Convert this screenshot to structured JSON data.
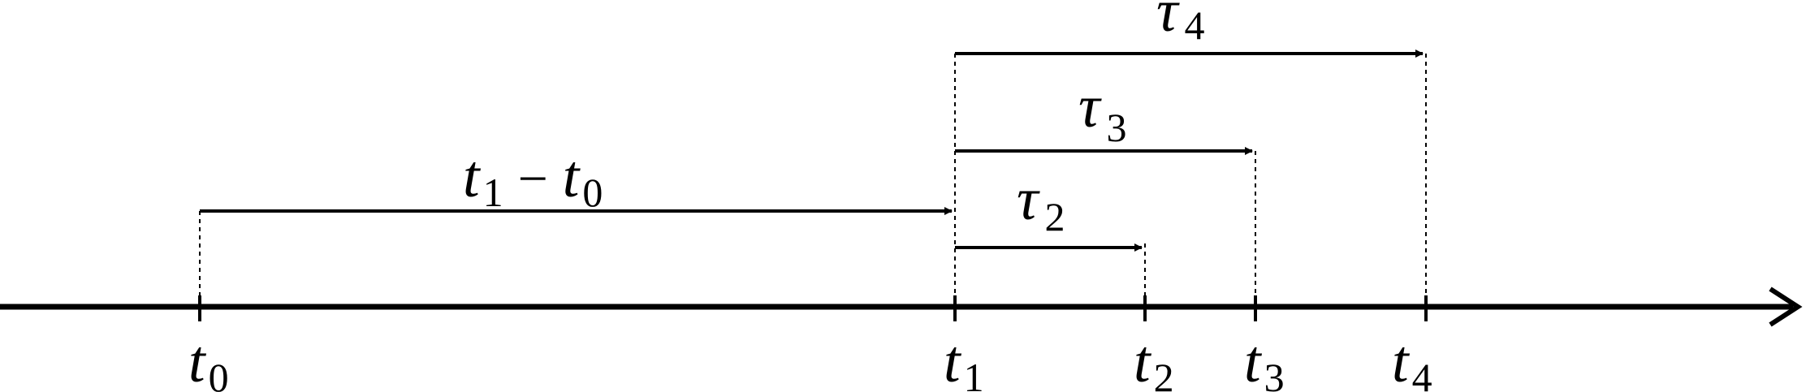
{
  "colors": {
    "ink": "#000000",
    "background": "#ffffff"
  },
  "axis": {
    "direction": "rightward arrow",
    "ticks": [
      {
        "id": "t0",
        "symbol": "t",
        "subscript": "0"
      },
      {
        "id": "t1",
        "symbol": "t",
        "subscript": "1"
      },
      {
        "id": "t2",
        "symbol": "t",
        "subscript": "2"
      },
      {
        "id": "t3",
        "symbol": "t",
        "subscript": "3"
      },
      {
        "id": "t4",
        "symbol": "t",
        "subscript": "4"
      }
    ]
  },
  "intervals": [
    {
      "id": "t1-minus-t0",
      "from": "t0",
      "to": "t1",
      "label": {
        "a": "t",
        "a_sub": "1",
        "op": "−",
        "b": "t",
        "b_sub": "0"
      }
    },
    {
      "id": "tau2",
      "from": "t1",
      "to": "t2",
      "label": {
        "symbol": "τ",
        "subscript": "2"
      }
    },
    {
      "id": "tau3",
      "from": "t1",
      "to": "t3",
      "label": {
        "symbol": "τ",
        "subscript": "3"
      }
    },
    {
      "id": "tau4",
      "from": "t1",
      "to": "t4",
      "label": {
        "symbol": "τ",
        "subscript": "4"
      }
    }
  ]
}
